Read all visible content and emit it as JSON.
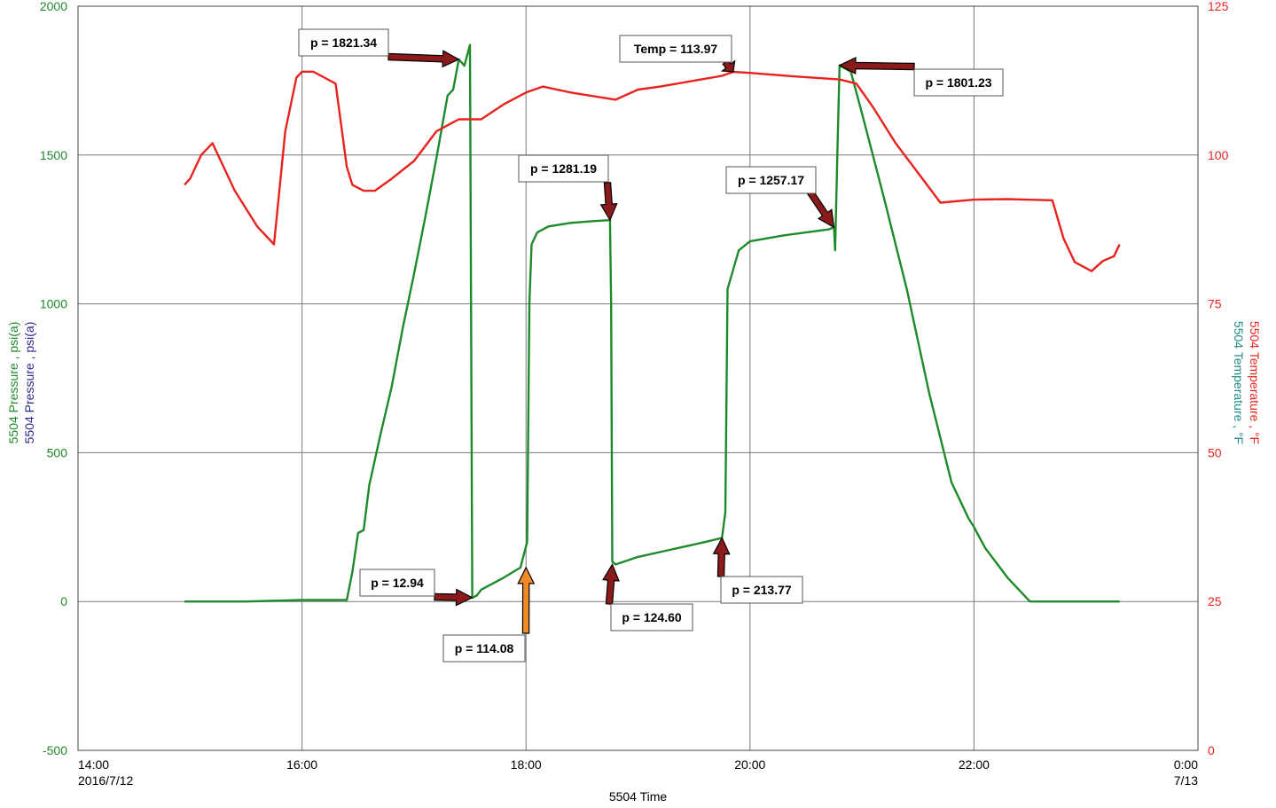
{
  "chart_data": {
    "type": "line",
    "title": "",
    "xlabel": "5504 Time",
    "x_ticks": [
      {
        "t": 14,
        "label": "14:00",
        "sub": "2016/7/12"
      },
      {
        "t": 16,
        "label": "16:00",
        "sub": ""
      },
      {
        "t": 18,
        "label": "18:00",
        "sub": ""
      },
      {
        "t": 20,
        "label": "20:00",
        "sub": ""
      },
      {
        "t": 22,
        "label": "22:00",
        "sub": ""
      },
      {
        "t": 24,
        "label": "0:00",
        "sub": "7/13"
      }
    ],
    "xlim": [
      14,
      24
    ],
    "y_left": {
      "labels": [
        "5504 Pressure , psi(a)",
        "5504 Pressure , psi(a)"
      ],
      "label_colors": [
        "#1e8a2a",
        "#2a2a8a"
      ],
      "ticks": [
        2000,
        1500,
        1000,
        500,
        0,
        -500
      ],
      "tick_labels": [
        "2000",
        "1500",
        "1000",
        "500",
        "0",
        "-500"
      ],
      "ylim": [
        -500,
        2000
      ],
      "color": "#1e8a2a"
    },
    "y_right": {
      "labels": [
        "5504 Temperature , °F",
        "5504 Temperature , °F"
      ],
      "label_colors": [
        "#e8231e",
        "#1e8a8a"
      ],
      "ticks": [
        125,
        100,
        75,
        50,
        25,
        0
      ],
      "tick_labels": [
        "125",
        "100",
        "75",
        "50",
        "25",
        "0"
      ],
      "ylim": [
        0,
        125
      ],
      "color": "#e8231e"
    },
    "grid": true,
    "series": [
      {
        "axis": "left",
        "color": "#1e8a2a",
        "x": [
          14.95,
          15.5,
          16.0,
          16.4,
          16.45,
          16.5,
          16.55,
          16.6,
          16.7,
          16.8,
          16.9,
          17.0,
          17.1,
          17.2,
          17.3,
          17.35,
          17.4,
          17.45,
          17.5,
          17.52,
          17.56,
          17.6,
          17.8,
          17.95,
          18.01,
          18.03,
          18.05,
          18.1,
          18.2,
          18.4,
          18.6,
          18.75,
          18.76,
          18.77,
          18.8,
          19.0,
          19.3,
          19.6,
          19.75,
          19.78,
          19.8,
          19.9,
          20.0,
          20.3,
          20.7,
          20.75,
          20.76,
          20.78,
          20.8,
          20.9,
          21.0,
          21.2,
          21.4,
          21.6,
          21.8,
          21.95,
          22.0,
          22.1,
          22.2,
          22.3,
          22.5,
          23.0,
          23.3
        ],
        "y": [
          0,
          0,
          5,
          5,
          100,
          230,
          240,
          390,
          560,
          720,
          920,
          1100,
          1290,
          1490,
          1700,
          1720,
          1821.34,
          1800,
          1870,
          12.94,
          20,
          40,
          80,
          114.08,
          200,
          1000,
          1200,
          1240,
          1260,
          1272,
          1278,
          1281.19,
          1000,
          134,
          124.6,
          150,
          175,
          200,
          213.77,
          300,
          1050,
          1180,
          1210,
          1230,
          1250,
          1257.17,
          1180,
          1500,
          1801.23,
          1780,
          1640,
          1350,
          1050,
          700,
          400,
          280,
          250,
          180,
          130,
          80,
          0,
          0,
          0
        ]
      },
      {
        "axis": "right",
        "color": "#e8231e",
        "x": [
          14.95,
          15.0,
          15.1,
          15.2,
          15.4,
          15.6,
          15.75,
          15.85,
          15.95,
          16.0,
          16.1,
          16.2,
          16.3,
          16.4,
          16.45,
          16.55,
          16.65,
          16.8,
          17.0,
          17.2,
          17.4,
          17.6,
          17.8,
          18.0,
          18.15,
          18.4,
          18.8,
          19.0,
          19.2,
          19.5,
          19.75,
          19.85,
          20.0,
          20.4,
          20.8,
          20.95,
          21.1,
          21.3,
          21.5,
          21.7,
          22.0,
          22.3,
          22.7,
          22.8,
          22.9,
          23.05,
          23.15,
          23.25,
          23.3
        ],
        "y": [
          95,
          96,
          100,
          102,
          94,
          88,
          85,
          104,
          113,
          114,
          114,
          113,
          112,
          98,
          95,
          94,
          94,
          96,
          99,
          104,
          106,
          106,
          108.5,
          110.5,
          111.5,
          110.5,
          109.3,
          111,
          111.5,
          112.5,
          113.3,
          113.97,
          113.8,
          113.2,
          112.7,
          112,
          108,
          102,
          97,
          92,
          92.5,
          92.6,
          92.4,
          86,
          82,
          80.5,
          82.2,
          83,
          85
        ]
      }
    ],
    "annotations": [
      {
        "text": "p = 1821.34",
        "x": 17.4,
        "y": 1821.34,
        "axis": "left"
      },
      {
        "text": "Temp = 113.97",
        "x": 19.85,
        "y": 113.97,
        "axis": "right"
      },
      {
        "text": "p = 1801.23",
        "x": 20.8,
        "y": 1801.23,
        "axis": "left"
      },
      {
        "text": "p = 1281.19",
        "x": 18.75,
        "y": 1281.19,
        "axis": "left"
      },
      {
        "text": "p = 1257.17",
        "x": 20.75,
        "y": 1257.17,
        "axis": "left"
      },
      {
        "text": "p = 12.94",
        "x": 17.52,
        "y": 12.94,
        "axis": "left"
      },
      {
        "text": "p = 114.08",
        "x": 18.0,
        "y": 114.08,
        "axis": "left"
      },
      {
        "text": "p = 124.60",
        "x": 18.77,
        "y": 124.6,
        "axis": "left"
      },
      {
        "text": "p = 213.77",
        "x": 19.75,
        "y": 213.77,
        "axis": "left"
      }
    ],
    "arrow_color": "#8b1a1a",
    "arrow_highlight_color": "#f08a24"
  }
}
